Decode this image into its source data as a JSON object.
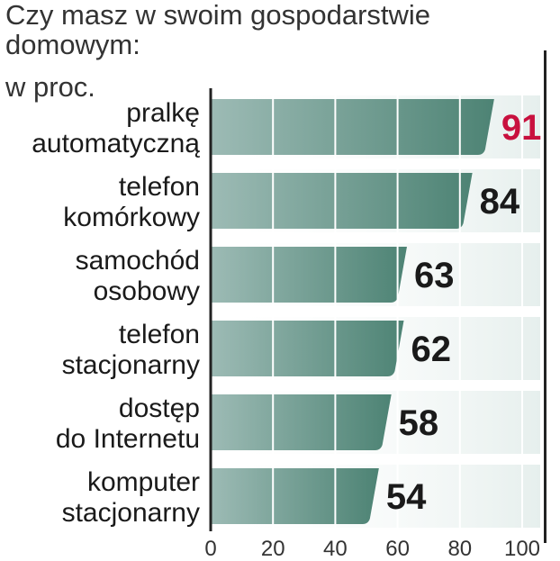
{
  "chart_data": {
    "type": "bar",
    "orientation": "horizontal",
    "title": "Czy masz w swoim gospodarstwie domowym:",
    "subtitle": "w proc.",
    "categories": [
      [
        "pralkę",
        "automatyczną"
      ],
      [
        "telefon",
        "komórkowy"
      ],
      [
        "samochód",
        "osobowy"
      ],
      [
        "telefon",
        "stacjonarny"
      ],
      [
        "dostęp",
        "do Internetu"
      ],
      [
        "komputer",
        "stacjonarny"
      ]
    ],
    "values": [
      91,
      84,
      63,
      62,
      58,
      54
    ],
    "value_labels": [
      "91",
      "84",
      "63",
      "62",
      "58",
      "54"
    ],
    "highlight_index": 0,
    "xlim": [
      0,
      100
    ],
    "xticks": [
      "0",
      "20",
      "40",
      "60",
      "80",
      "100"
    ],
    "grid": true,
    "colors": {
      "bar_left": "#9dbbb5",
      "bar_right": "#4d8374",
      "highlight_label": "#c8103e",
      "value_label": "#1a1a1a",
      "grid": "#ffffff",
      "background_band": "#e6efed"
    }
  }
}
